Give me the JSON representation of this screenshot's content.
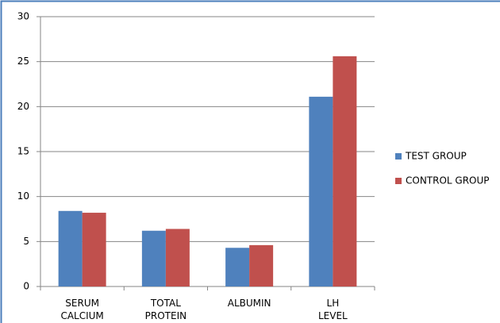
{
  "chart_data": {
    "type": "bar",
    "categories": [
      "SERUM CALCIUM",
      "TOTAL PROTEIN",
      "ALBUMIN",
      "LH LEVEL"
    ],
    "series": [
      {
        "name": "TEST GROUP",
        "color": "#4f81bd",
        "values": [
          8.4,
          6.2,
          4.3,
          21.1
        ]
      },
      {
        "name": "CONTROL GROUP",
        "color": "#c0504d",
        "values": [
          8.2,
          6.4,
          4.6,
          25.6
        ]
      }
    ],
    "ylim": [
      0,
      30
    ],
    "yticks": [
      0,
      5,
      10,
      15,
      20,
      25,
      30
    ],
    "grid": true,
    "legend": "right"
  }
}
